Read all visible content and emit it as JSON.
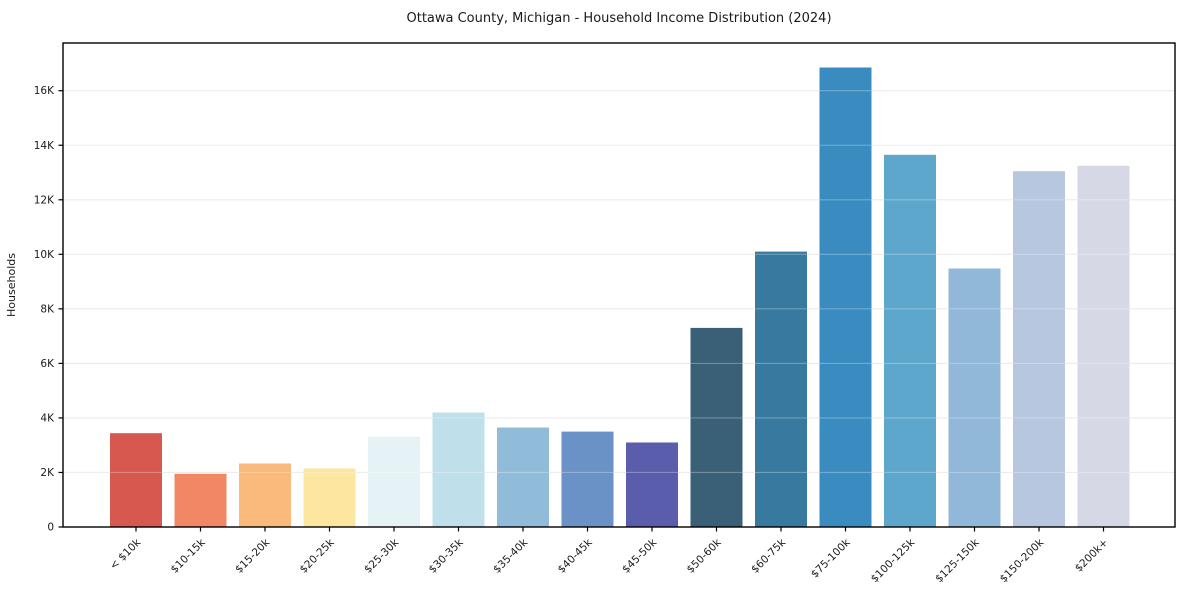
{
  "chart_data": {
    "type": "bar",
    "title": "Ottawa County, Michigan - Household Income Distribution (2024)",
    "ylabel": "Households",
    "xlabel": "",
    "categories": [
      "< $10k",
      "$10-15k",
      "$15-20k",
      "$20-25k",
      "$25-30k",
      "$30-35k",
      "$35-40k",
      "$40-45k",
      "$45-50k",
      "$50-60k",
      "$60-75k",
      "$75-100k",
      "$100-125k",
      "$125-150k",
      "$150-200k",
      "$200k+"
    ],
    "values": [
      3440,
      1950,
      2330,
      2150,
      3310,
      4200,
      3650,
      3500,
      3100,
      7300,
      10100,
      16850,
      13650,
      9480,
      13050,
      13250
    ],
    "bar_colors": [
      "#d6584e",
      "#f28766",
      "#f9ba7b",
      "#fce6a0",
      "#e6f3f6",
      "#bfe0eb",
      "#90bcda",
      "#6b92c7",
      "#5a5dac",
      "#3a6078",
      "#387a9f",
      "#3a8cc0",
      "#5ea7cc",
      "#91b8d8",
      "#b8c7e0",
      "#d7d8e6"
    ],
    "ylim": [
      0,
      17750
    ],
    "ytick_values": [
      0,
      2000,
      4000,
      6000,
      8000,
      10000,
      12000,
      14000,
      16000
    ],
    "ytick_labels": [
      "0",
      "2K",
      "4K",
      "6K",
      "8K",
      "10K",
      "12K",
      "14K",
      "16K"
    ],
    "grid": "horizontal",
    "legend": "none",
    "colors": {
      "background": "#ffffff",
      "spine": "#000000",
      "gridline": "#e7e7e7",
      "text": "#1a1a1a"
    }
  }
}
